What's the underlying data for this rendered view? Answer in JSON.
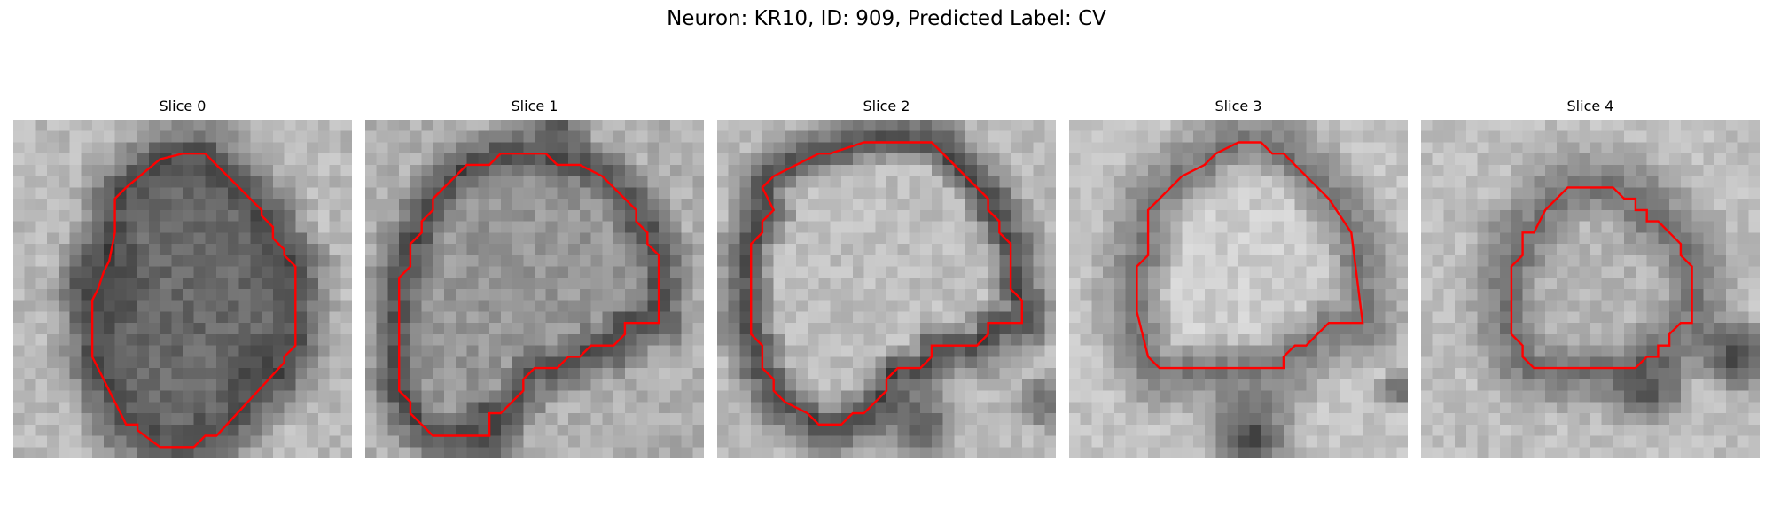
{
  "figure": {
    "title": "Neuron: KR10, ID: 909, Predicted Label: CV",
    "outline_color": "#ff0000",
    "panels": [
      {
        "label": "Slice 0"
      },
      {
        "label": "Slice 1"
      },
      {
        "label": "Slice 2"
      },
      {
        "label": "Slice 3"
      },
      {
        "label": "Slice 4"
      }
    ]
  }
}
